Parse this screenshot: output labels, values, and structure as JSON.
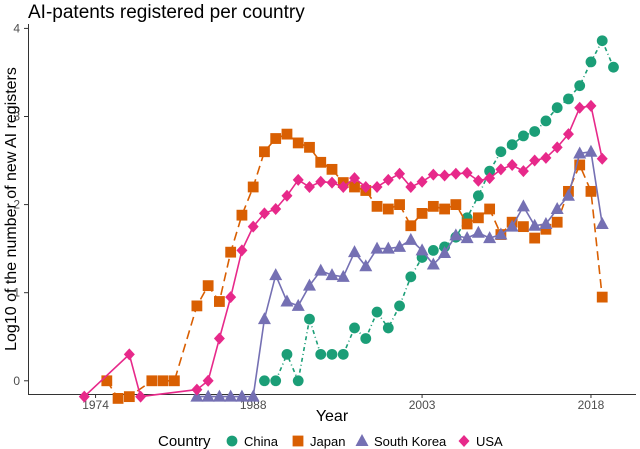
{
  "chart_data": {
    "type": "line",
    "title": "AI-patents registered per country",
    "xlabel": "Year",
    "ylabel": "Log10 of the number of new AI registers",
    "xlim": [
      1968,
      2022
    ],
    "ylim": [
      -0.15,
      4.05
    ],
    "x_ticks": [
      1974,
      1988,
      2003,
      2018
    ],
    "x_tick_labels": [
      "1974",
      "1988",
      "2003",
      "2018"
    ],
    "y_ticks": [
      0,
      1,
      2,
      3,
      4
    ],
    "y_tick_labels": [
      "0",
      "1",
      "2",
      "3",
      "4"
    ],
    "grid": false,
    "legend_title": "Country",
    "legend_position": "bottom",
    "series": [
      {
        "name": "China",
        "color": "#1b9e77",
        "marker": "circle",
        "dash": "4,3,1,3",
        "points": [
          [
            1989,
            0.0
          ],
          [
            1990,
            0.0
          ],
          [
            1991,
            0.3
          ],
          [
            1992,
            0.0
          ],
          [
            1993,
            0.7
          ],
          [
            1994,
            0.3
          ],
          [
            1995,
            0.3
          ],
          [
            1996,
            0.3
          ],
          [
            1997,
            0.6
          ],
          [
            1998,
            0.48
          ],
          [
            1999,
            0.78
          ],
          [
            2000,
            0.6
          ],
          [
            2001,
            0.85
          ],
          [
            2002,
            1.18
          ],
          [
            2003,
            1.4
          ],
          [
            2004,
            1.48
          ],
          [
            2005,
            1.52
          ],
          [
            2006,
            1.63
          ],
          [
            2007,
            1.85
          ],
          [
            2008,
            2.1
          ],
          [
            2009,
            2.38
          ],
          [
            2010,
            2.6
          ],
          [
            2011,
            2.68
          ],
          [
            2012,
            2.78
          ],
          [
            2013,
            2.83
          ],
          [
            2014,
            2.95
          ],
          [
            2015,
            3.1
          ],
          [
            2016,
            3.2
          ],
          [
            2017,
            3.35
          ],
          [
            2018,
            3.62
          ],
          [
            2019,
            3.86
          ],
          [
            2020,
            3.56
          ]
        ]
      },
      {
        "name": "Japan",
        "color": "#d95f02",
        "marker": "square",
        "dash": "9,5",
        "points": [
          [
            1975,
            0.0
          ],
          [
            1976,
            -0.2
          ],
          [
            1977,
            -0.18
          ],
          [
            1979,
            0.0
          ],
          [
            1980,
            0.0
          ],
          [
            1981,
            0.0
          ],
          [
            1983,
            0.85
          ],
          [
            1984,
            1.08
          ],
          [
            1985,
            0.9
          ],
          [
            1986,
            1.46
          ],
          [
            1987,
            1.88
          ],
          [
            1988,
            2.2
          ],
          [
            1989,
            2.6
          ],
          [
            1990,
            2.75
          ],
          [
            1991,
            2.8
          ],
          [
            1992,
            2.7
          ],
          [
            1993,
            2.65
          ],
          [
            1994,
            2.48
          ],
          [
            1995,
            2.4
          ],
          [
            1996,
            2.25
          ],
          [
            1997,
            2.2
          ],
          [
            1998,
            2.16
          ],
          [
            1999,
            1.98
          ],
          [
            2000,
            1.95
          ],
          [
            2001,
            2.0
          ],
          [
            2002,
            1.76
          ],
          [
            2003,
            1.9
          ],
          [
            2004,
            1.98
          ],
          [
            2005,
            1.95
          ],
          [
            2006,
            2.0
          ],
          [
            2007,
            1.78
          ],
          [
            2008,
            1.85
          ],
          [
            2009,
            1.95
          ],
          [
            2010,
            1.66
          ],
          [
            2011,
            1.8
          ],
          [
            2012,
            1.75
          ],
          [
            2013,
            1.62
          ],
          [
            2014,
            1.72
          ],
          [
            2015,
            1.8
          ],
          [
            2016,
            2.15
          ],
          [
            2017,
            2.45
          ],
          [
            2018,
            2.15
          ],
          [
            2019,
            0.95
          ]
        ]
      },
      {
        "name": "South Korea",
        "color": "#7570b3",
        "marker": "triangle",
        "dash": "none",
        "points": [
          [
            1983,
            -0.18
          ],
          [
            1984,
            -0.18
          ],
          [
            1985,
            -0.18
          ],
          [
            1986,
            -0.18
          ],
          [
            1987,
            -0.18
          ],
          [
            1988,
            -0.18
          ],
          [
            1989,
            0.7
          ],
          [
            1990,
            1.2
          ],
          [
            1991,
            0.9
          ],
          [
            1992,
            0.85
          ],
          [
            1993,
            1.08
          ],
          [
            1994,
            1.25
          ],
          [
            1995,
            1.2
          ],
          [
            1996,
            1.18
          ],
          [
            1997,
            1.46
          ],
          [
            1998,
            1.3
          ],
          [
            1999,
            1.5
          ],
          [
            2000,
            1.5
          ],
          [
            2001,
            1.52
          ],
          [
            2002,
            1.6
          ],
          [
            2003,
            1.48
          ],
          [
            2004,
            1.32
          ],
          [
            2005,
            1.45
          ],
          [
            2006,
            1.65
          ],
          [
            2007,
            1.62
          ],
          [
            2008,
            1.68
          ],
          [
            2009,
            1.62
          ],
          [
            2010,
            1.66
          ],
          [
            2011,
            1.75
          ],
          [
            2012,
            1.98
          ],
          [
            2013,
            1.76
          ],
          [
            2014,
            1.78
          ],
          [
            2015,
            1.95
          ],
          [
            2016,
            2.1
          ],
          [
            2017,
            2.58
          ],
          [
            2018,
            2.6
          ],
          [
            2019,
            1.78
          ]
        ]
      },
      {
        "name": "USA",
        "color": "#e7298a",
        "marker": "diamond",
        "dash": "none",
        "points": [
          [
            1973,
            -0.18
          ],
          [
            1977,
            0.3
          ],
          [
            1978,
            -0.18
          ],
          [
            1983,
            -0.1
          ],
          [
            1984,
            0.0
          ],
          [
            1985,
            0.48
          ],
          [
            1986,
            0.95
          ],
          [
            1987,
            1.48
          ],
          [
            1988,
            1.75
          ],
          [
            1989,
            1.9
          ],
          [
            1990,
            1.95
          ],
          [
            1991,
            2.1
          ],
          [
            1992,
            2.28
          ],
          [
            1993,
            2.2
          ],
          [
            1994,
            2.26
          ],
          [
            1995,
            2.25
          ],
          [
            1996,
            2.2
          ],
          [
            1997,
            2.3
          ],
          [
            1998,
            2.2
          ],
          [
            1999,
            2.2
          ],
          [
            2000,
            2.28
          ],
          [
            2001,
            2.35
          ],
          [
            2002,
            2.2
          ],
          [
            2003,
            2.26
          ],
          [
            2004,
            2.34
          ],
          [
            2005,
            2.33
          ],
          [
            2006,
            2.35
          ],
          [
            2007,
            2.36
          ],
          [
            2008,
            2.27
          ],
          [
            2009,
            2.3
          ],
          [
            2010,
            2.4
          ],
          [
            2011,
            2.45
          ],
          [
            2012,
            2.38
          ],
          [
            2013,
            2.5
          ],
          [
            2014,
            2.53
          ],
          [
            2015,
            2.65
          ],
          [
            2016,
            2.8
          ],
          [
            2017,
            3.1
          ],
          [
            2018,
            3.12
          ],
          [
            2019,
            2.52
          ]
        ]
      }
    ]
  }
}
